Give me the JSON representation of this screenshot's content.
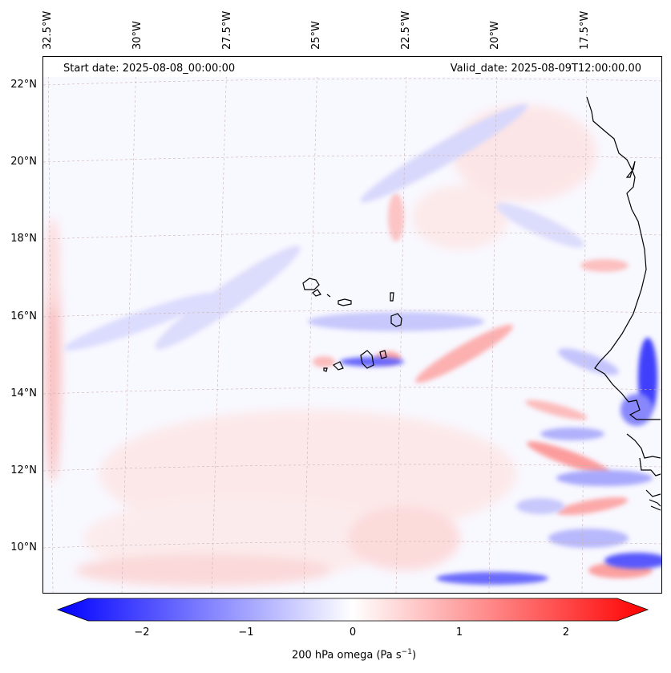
{
  "header": {
    "start_date": "Start date: 2025-08-08_00:00:00",
    "valid_date": "Valid_date: 2025-08-09T12:00:00.00"
  },
  "axes": {
    "lon_labels": [
      "32.5°W",
      "30°W",
      "27.5°W",
      "25°W",
      "22.5°W",
      "20°W",
      "17.5°W"
    ],
    "lat_labels": [
      "22°N",
      "20°N",
      "18°N",
      "16°N",
      "14°N",
      "12°N",
      "10°N"
    ]
  },
  "colorbar": {
    "ticks": [
      "−2",
      "−1",
      "0",
      "1",
      "2"
    ],
    "label_main": "200 hPa omega (Pa s",
    "label_sup": "−1",
    "label_end": ")",
    "colors": {
      "min": "#0000ff",
      "mid": "#ffffff",
      "max": "#ff0000"
    },
    "range": [
      -2.6,
      2.6
    ]
  },
  "map": {
    "gridlines": "dashed",
    "coastline_color": "#000000"
  }
}
